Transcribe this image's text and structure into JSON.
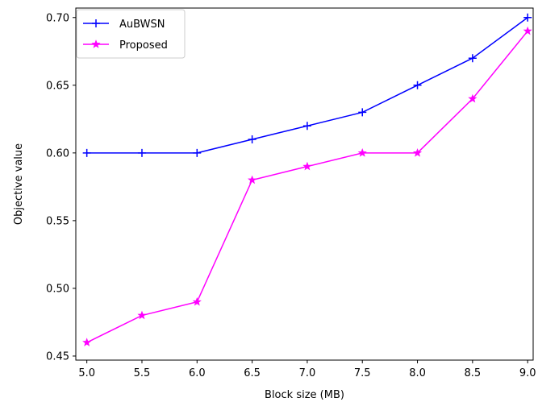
{
  "chart_data": {
    "type": "line",
    "title": "",
    "xlabel": "Block size (MB)",
    "ylabel": "Objective value",
    "xlim": [
      4.9,
      9.05
    ],
    "ylim": [
      0.447,
      0.707
    ],
    "x": [
      5.0,
      5.5,
      6.0,
      6.5,
      7.0,
      7.5,
      8.0,
      8.5,
      9.0
    ],
    "x_ticks": [
      "5.0",
      "5.5",
      "6.0",
      "6.5",
      "7.0",
      "7.5",
      "8.0",
      "8.5",
      "9.0"
    ],
    "y_ticks": [
      "0.45",
      "0.50",
      "0.55",
      "0.60",
      "0.65",
      "0.70"
    ],
    "grid": false,
    "legend_position": "top-left",
    "series": [
      {
        "name": "AuBWSN",
        "color": "#0000ff",
        "marker": "plus",
        "values": [
          0.6,
          0.6,
          0.6,
          0.61,
          0.62,
          0.63,
          0.65,
          0.67,
          0.7
        ]
      },
      {
        "name": "Proposed",
        "color": "#ff00ff",
        "marker": "star",
        "values": [
          0.46,
          0.48,
          0.49,
          0.58,
          0.59,
          0.6,
          0.6,
          0.64,
          0.69
        ]
      }
    ]
  }
}
